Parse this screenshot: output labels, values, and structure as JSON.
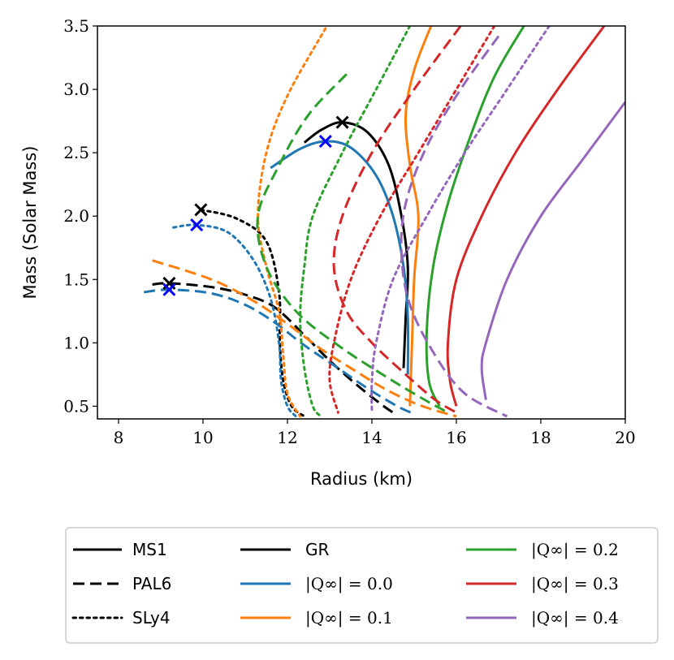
{
  "chart_data": {
    "type": "line",
    "title": "",
    "xlabel": "Radius (km)",
    "ylabel": "Mass (Solar Mass)",
    "xlim": [
      7.5,
      20
    ],
    "ylim": [
      0.4,
      3.5
    ],
    "xticks": [
      8,
      10,
      12,
      14,
      16,
      18,
      20
    ],
    "yticks": [
      0.5,
      1.0,
      1.5,
      2.0,
      2.5,
      3.0,
      3.5
    ],
    "xtick_labels": [
      "8",
      "10",
      "12",
      "14",
      "16",
      "18",
      "20"
    ],
    "ytick_labels": [
      "0.5",
      "1.0",
      "1.5",
      "2.0",
      "2.5",
      "3.0",
      "3.5"
    ],
    "grid": false,
    "legend_position": "below",
    "legend_eos": [
      {
        "label": "MS1",
        "style": "solid"
      },
      {
        "label": "PAL6",
        "style": "dashed"
      },
      {
        "label": "SLy4",
        "style": "dotted"
      }
    ],
    "legend_models": [
      {
        "label": "GR",
        "color": "#000000"
      },
      {
        "label": "|Q∞| = 0.0",
        "color": "#1f77b4"
      },
      {
        "label": "|Q∞| = 0.1",
        "color": "#ff7f0e"
      },
      {
        "label": "|Q∞| = 0.2",
        "color": "#2ca02c"
      },
      {
        "label": "|Q∞| = 0.3",
        "color": "#d62728"
      },
      {
        "label": "|Q∞| = 0.4",
        "color": "#9467bd"
      }
    ],
    "series": [
      {
        "name": "GR MS1",
        "model": "GR",
        "eos": "MS1",
        "color": "#000000",
        "style": "solid",
        "points": [
          [
            12.4,
            2.58
          ],
          [
            12.8,
            2.68
          ],
          [
            13.3,
            2.74
          ],
          [
            13.9,
            2.66
          ],
          [
            14.4,
            2.4
          ],
          [
            14.7,
            2.0
          ],
          [
            14.85,
            1.6
          ],
          [
            14.8,
            1.2
          ],
          [
            14.75,
            0.8
          ]
        ]
      },
      {
        "name": "GR PAL6",
        "model": "GR",
        "eos": "PAL6",
        "color": "#000000",
        "style": "dashed",
        "points": [
          [
            8.8,
            1.46
          ],
          [
            9.2,
            1.47
          ],
          [
            10.2,
            1.44
          ],
          [
            11,
            1.38
          ],
          [
            11.7,
            1.28
          ],
          [
            12.4,
            1.06
          ],
          [
            13,
            0.86
          ],
          [
            13.6,
            0.68
          ],
          [
            14.2,
            0.52
          ],
          [
            14.5,
            0.45
          ]
        ]
      },
      {
        "name": "GR SLy4",
        "model": "GR",
        "eos": "SLy4",
        "color": "#000000",
        "style": "dotted",
        "points": [
          [
            9.95,
            2.05
          ],
          [
            10.8,
            1.98
          ],
          [
            11.5,
            1.8
          ],
          [
            11.8,
            1.4
          ],
          [
            11.82,
            1.0
          ],
          [
            11.9,
            0.7
          ],
          [
            12.1,
            0.5
          ],
          [
            12.4,
            0.42
          ]
        ]
      },
      {
        "name": "Q0.0 MS1",
        "model": "|Q∞| = 0.0",
        "eos": "MS1",
        "color": "#1f77b4",
        "style": "solid",
        "points": [
          [
            11.6,
            2.38
          ],
          [
            12.3,
            2.53
          ],
          [
            12.9,
            2.59
          ],
          [
            13.5,
            2.54
          ],
          [
            14.1,
            2.32
          ],
          [
            14.5,
            2.0
          ],
          [
            14.75,
            1.6
          ],
          [
            14.85,
            1.2
          ],
          [
            14.85,
            0.75
          ]
        ]
      },
      {
        "name": "Q0.0 PAL6",
        "model": "|Q∞| = 0.0",
        "eos": "PAL6",
        "color": "#1f77b4",
        "style": "dashed",
        "points": [
          [
            8.6,
            1.4
          ],
          [
            9.2,
            1.42
          ],
          [
            10.2,
            1.39
          ],
          [
            11,
            1.3
          ],
          [
            11.7,
            1.16
          ],
          [
            12.4,
            0.98
          ],
          [
            13.2,
            0.8
          ],
          [
            13.9,
            0.64
          ],
          [
            14.6,
            0.5
          ],
          [
            15,
            0.44
          ]
        ]
      },
      {
        "name": "Q0.0 SLy4",
        "model": "|Q∞| = 0.0",
        "eos": "SLy4",
        "color": "#1f77b4",
        "style": "dotted",
        "points": [
          [
            9.3,
            1.91
          ],
          [
            9.85,
            1.93
          ],
          [
            10.6,
            1.87
          ],
          [
            11.2,
            1.65
          ],
          [
            11.6,
            1.35
          ],
          [
            11.8,
            1.0
          ],
          [
            11.85,
            0.7
          ],
          [
            12.0,
            0.5
          ],
          [
            12.2,
            0.42
          ]
        ]
      },
      {
        "name": "Q0.1 MS1",
        "model": "|Q∞| = 0.1",
        "eos": "MS1",
        "color": "#ff7f0e",
        "style": "solid",
        "points": [
          [
            15.4,
            3.5
          ],
          [
            15.0,
            3.15
          ],
          [
            14.8,
            2.8
          ],
          [
            14.9,
            2.4
          ],
          [
            15.1,
            2.0
          ],
          [
            15.0,
            1.5
          ],
          [
            14.95,
            1.0
          ],
          [
            14.9,
            0.5
          ]
        ]
      },
      {
        "name": "Q0.1 PAL6",
        "model": "|Q∞| = 0.1",
        "eos": "PAL6",
        "color": "#ff7f0e",
        "style": "dashed",
        "points": [
          [
            8.8,
            1.65
          ],
          [
            10.2,
            1.5
          ],
          [
            11.2,
            1.33
          ],
          [
            12,
            1.15
          ],
          [
            12.8,
            0.95
          ],
          [
            13.6,
            0.78
          ],
          [
            14.4,
            0.62
          ],
          [
            15.2,
            0.5
          ],
          [
            16.0,
            0.42
          ]
        ]
      },
      {
        "name": "Q0.1 SLy4",
        "model": "|Q∞| = 0.1",
        "eos": "SLy4",
        "color": "#ff7f0e",
        "style": "dotted",
        "points": [
          [
            12.9,
            3.48
          ],
          [
            12.0,
            2.95
          ],
          [
            11.5,
            2.5
          ],
          [
            11.3,
            2.0
          ],
          [
            11.5,
            1.6
          ],
          [
            11.8,
            1.25
          ],
          [
            11.9,
            0.9
          ],
          [
            12.0,
            0.6
          ],
          [
            12.3,
            0.42
          ]
        ]
      },
      {
        "name": "Q0.2 MS1",
        "model": "|Q∞| = 0.2",
        "eos": "MS1",
        "color": "#2ca02c",
        "style": "solid",
        "points": [
          [
            17.6,
            3.5
          ],
          [
            16.9,
            3.1
          ],
          [
            16.3,
            2.6
          ],
          [
            15.8,
            2.1
          ],
          [
            15.45,
            1.6
          ],
          [
            15.3,
            1.1
          ],
          [
            15.35,
            0.7
          ],
          [
            15.6,
            0.5
          ]
        ]
      },
      {
        "name": "Q0.2 PAL6",
        "model": "|Q∞| = 0.2",
        "eos": "PAL6",
        "color": "#2ca02c",
        "style": "dashed",
        "points": [
          [
            13.4,
            3.12
          ],
          [
            12.5,
            2.8
          ],
          [
            11.8,
            2.4
          ],
          [
            11.3,
            2.0
          ],
          [
            11.5,
            1.6
          ],
          [
            12.2,
            1.25
          ],
          [
            13.2,
            0.98
          ],
          [
            14.3,
            0.74
          ],
          [
            15.2,
            0.56
          ],
          [
            15.8,
            0.45
          ]
        ]
      },
      {
        "name": "Q0.2 SLy4",
        "model": "|Q∞| = 0.2",
        "eos": "SLy4",
        "color": "#2ca02c",
        "style": "dotted",
        "points": [
          [
            14.9,
            3.5
          ],
          [
            14.1,
            3.0
          ],
          [
            13.3,
            2.5
          ],
          [
            12.6,
            2.0
          ],
          [
            12.4,
            1.6
          ],
          [
            12.3,
            1.2
          ],
          [
            12.4,
            0.8
          ],
          [
            12.6,
            0.5
          ],
          [
            12.8,
            0.42
          ]
        ]
      },
      {
        "name": "Q0.3 MS1",
        "model": "|Q∞| = 0.3",
        "eos": "MS1",
        "color": "#d62728",
        "style": "solid",
        "points": [
          [
            19.5,
            3.5
          ],
          [
            18.4,
            3.0
          ],
          [
            17.4,
            2.5
          ],
          [
            16.6,
            2.0
          ],
          [
            16.0,
            1.5
          ],
          [
            15.8,
            1.0
          ],
          [
            15.85,
            0.7
          ],
          [
            16.0,
            0.5
          ]
        ]
      },
      {
        "name": "Q0.3 PAL6",
        "model": "|Q∞| = 0.3",
        "eos": "PAL6",
        "color": "#d62728",
        "style": "dashed",
        "points": [
          [
            16.1,
            3.5
          ],
          [
            15.0,
            3.0
          ],
          [
            14.0,
            2.5
          ],
          [
            13.3,
            2.0
          ],
          [
            13.1,
            1.6
          ],
          [
            13.4,
            1.25
          ],
          [
            14.0,
            1.0
          ],
          [
            14.8,
            0.75
          ],
          [
            15.5,
            0.55
          ],
          [
            16.0,
            0.45
          ]
        ]
      },
      {
        "name": "Q0.3 SLy4",
        "model": "|Q∞| = 0.3",
        "eos": "SLy4",
        "color": "#d62728",
        "style": "dotted",
        "points": [
          [
            16.9,
            3.5
          ],
          [
            16.0,
            3.0
          ],
          [
            15.1,
            2.5
          ],
          [
            14.2,
            2.0
          ],
          [
            13.5,
            1.5
          ],
          [
            13.1,
            1.0
          ],
          [
            13.0,
            0.7
          ],
          [
            13.2,
            0.45
          ]
        ]
      },
      {
        "name": "Q0.4 MS1",
        "model": "|Q∞| = 0.4",
        "eos": "MS1",
        "color": "#9467bd",
        "style": "solid",
        "points": [
          [
            20.0,
            2.9
          ],
          [
            19.0,
            2.45
          ],
          [
            18.0,
            2.0
          ],
          [
            17.2,
            1.5
          ],
          [
            16.7,
            1.0
          ],
          [
            16.6,
            0.8
          ],
          [
            16.7,
            0.55
          ]
        ]
      },
      {
        "name": "Q0.4 PAL6",
        "model": "|Q∞| = 0.4",
        "eos": "PAL6",
        "color": "#9467bd",
        "style": "dashed",
        "points": [
          [
            17.0,
            3.42
          ],
          [
            16.1,
            3.0
          ],
          [
            15.3,
            2.55
          ],
          [
            14.8,
            2.1
          ],
          [
            14.7,
            1.7
          ],
          [
            14.9,
            1.3
          ],
          [
            15.5,
            0.9
          ],
          [
            16.2,
            0.6
          ],
          [
            17.2,
            0.42
          ]
        ]
      },
      {
        "name": "Q0.4 SLy4",
        "model": "|Q∞| = 0.4",
        "eos": "SLy4",
        "color": "#9467bd",
        "style": "dotted",
        "points": [
          [
            18.2,
            3.5
          ],
          [
            17.2,
            3.0
          ],
          [
            16.2,
            2.5
          ],
          [
            15.3,
            2.0
          ],
          [
            14.5,
            1.5
          ],
          [
            14.1,
            1.0
          ],
          [
            14.0,
            0.7
          ],
          [
            14.0,
            0.45
          ]
        ]
      }
    ],
    "max_markers": [
      {
        "x": 13.3,
        "y": 2.74,
        "color": "#000000"
      },
      {
        "x": 12.9,
        "y": 2.59,
        "color": "#0000ff"
      },
      {
        "x": 9.95,
        "y": 2.05,
        "color": "#000000"
      },
      {
        "x": 9.85,
        "y": 1.93,
        "color": "#0000ff"
      },
      {
        "x": 9.2,
        "y": 1.47,
        "color": "#000000"
      },
      {
        "x": 9.2,
        "y": 1.42,
        "color": "#0000ff"
      }
    ]
  }
}
